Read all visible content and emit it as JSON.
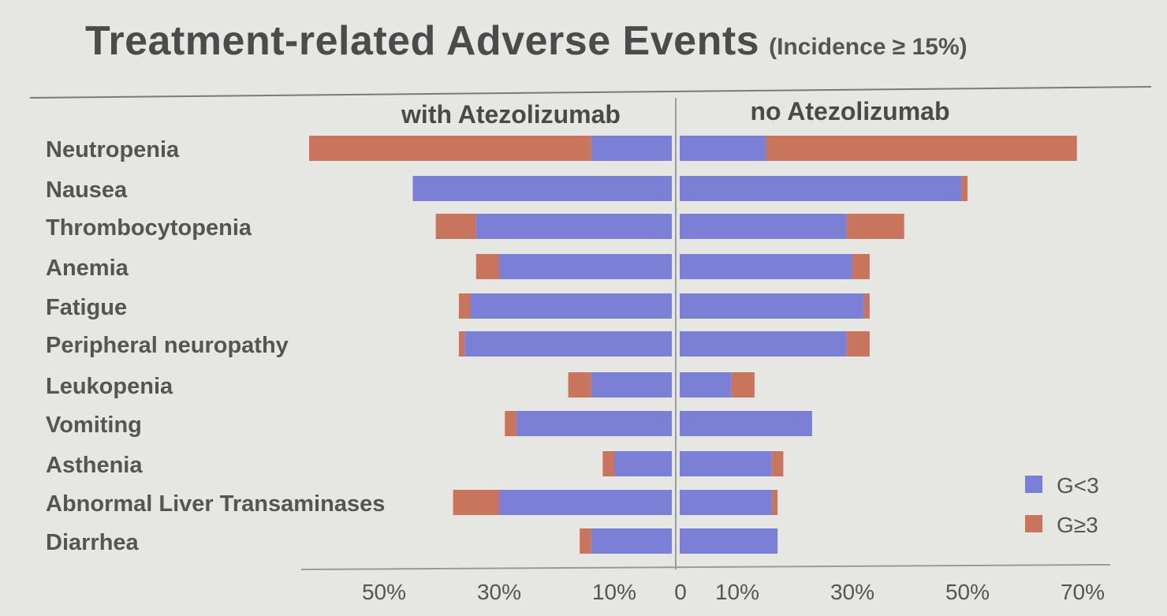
{
  "title": "Treatment-related Adverse Events",
  "subtitle": "(Incidence ≥ 15%)",
  "colors": {
    "grade_lt3": "#7b7fd6",
    "grade_ge3": "#c9745c",
    "axis": "#8a8a8a",
    "background": "#e6e6e3"
  },
  "chart_data": {
    "type": "bar",
    "orientation": "horizontal-butterfly",
    "panels": [
      "with Atezolizumab",
      "no Atezolizumab"
    ],
    "categories": [
      "Neutropenia",
      "Nausea",
      "Thrombocytopenia",
      "Anemia",
      "Fatigue",
      "Peripheral neuropathy",
      "Leukopenia",
      "Vomiting",
      "Asthenia",
      "Abnormal Liver Transaminases",
      "Diarrhea"
    ],
    "series": [
      {
        "name": "G<3",
        "panel": "with Atezolizumab",
        "values": [
          14,
          45,
          34,
          30,
          35,
          36,
          14,
          27,
          10,
          30,
          14
        ]
      },
      {
        "name": "G≥3",
        "panel": "with Atezolizumab",
        "values": [
          49,
          0,
          7,
          4,
          2,
          1,
          4,
          2,
          2,
          8,
          2
        ]
      },
      {
        "name": "G<3",
        "panel": "no Atezolizumab",
        "values": [
          15,
          49,
          29,
          30,
          32,
          29,
          9,
          23,
          16,
          16,
          17
        ]
      },
      {
        "name": "G≥3",
        "panel": "no Atezolizumab",
        "values": [
          54,
          1,
          10,
          3,
          1,
          4,
          4,
          0,
          2,
          1,
          0
        ]
      }
    ],
    "x_tick_labels": [
      "50%",
      "30%",
      "10%",
      "0",
      "10%",
      "30%",
      "50%",
      "70%"
    ],
    "x_tick_values": [
      -50,
      -30,
      -10,
      0,
      10,
      30,
      50,
      70
    ],
    "xlim": [
      -63,
      72
    ],
    "legend": {
      "placement": "bottom-right",
      "entries": [
        "G<3",
        "G≥3"
      ]
    }
  }
}
